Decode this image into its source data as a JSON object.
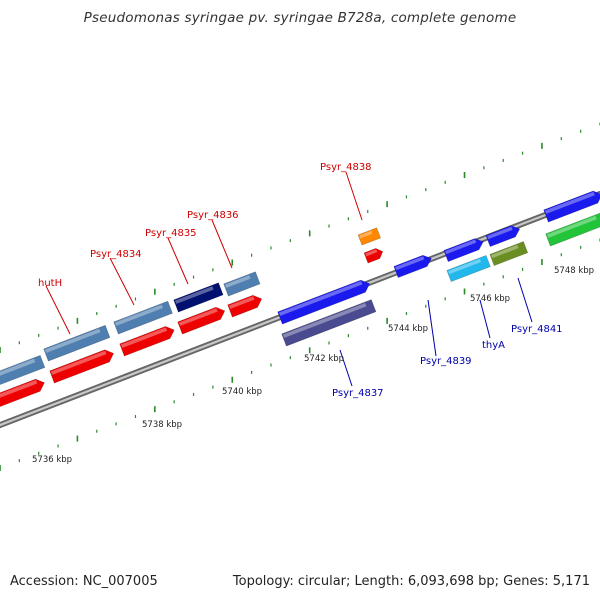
{
  "title": "Pseudomonas syringae pv. syringae B728a, complete genome",
  "footer": {
    "accession": "Accession: NC_007005",
    "summary": "Topology: circular; Length: 6,093,698 bp; Genes: 5,171"
  },
  "colors": {
    "backbone": "#888888",
    "tick": "#2a8a2a",
    "fwd_label": "#cc0000",
    "rev_label": "#0000aa"
  },
  "scale_labels": [
    {
      "text": "5736 kbp"
    },
    {
      "text": "5738 kbp"
    },
    {
      "text": "5740 kbp"
    },
    {
      "text": "5742 kbp"
    },
    {
      "text": "5744 kbp"
    },
    {
      "text": "5746 kbp"
    },
    {
      "text": "5748 kbp"
    }
  ],
  "gene_labels": [
    {
      "text": "hutH",
      "strand": "forward"
    },
    {
      "text": "Psyr_4834",
      "strand": "forward"
    },
    {
      "text": "Psyr_4835",
      "strand": "forward"
    },
    {
      "text": "Psyr_4836",
      "strand": "forward"
    },
    {
      "text": "Psyr_4838",
      "strand": "forward"
    },
    {
      "text": "Psyr_4837",
      "strand": "reverse"
    },
    {
      "text": "Psyr_4839",
      "strand": "reverse"
    },
    {
      "text": "thyA",
      "strand": "reverse"
    },
    {
      "text": "Psyr_4841",
      "strand": "reverse"
    }
  ]
}
